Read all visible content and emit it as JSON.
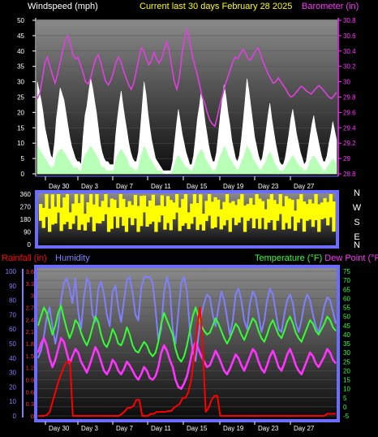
{
  "header": {
    "left": "Windspeed (mph)",
    "center": "Current last 30 days February 28 2025",
    "right": "Barometer (in)"
  },
  "colors": {
    "background": "#000000",
    "panel_top": "#8a8a8a",
    "panel_bottom": "#0a0a0a",
    "frame": "#6c6cff",
    "header_left": "#ffffff",
    "header_center": "#ffff00",
    "barometer": "#e040e0",
    "wind_gust": "#ffffff",
    "wind_avg": "#b8ffb8",
    "wind_dir": "#ffff00",
    "rain": "#ff0000",
    "humidity": "#8080ff",
    "temperature": "#33ff33",
    "dewpoint": "#ff33ff"
  },
  "date_labels": [
    "Day 30",
    "Day 3",
    "Day 7",
    "Day 11",
    "Day 15",
    "Day 19",
    "Day 23",
    "Day 27"
  ],
  "chart_data": [
    {
      "type": "line",
      "name": "wind-barometer",
      "y_axis_left": {
        "label": "Windspeed (mph)",
        "ticks": [
          "0",
          "5",
          "10",
          "15",
          "20",
          "25",
          "30",
          "35",
          "40",
          "45",
          "50"
        ],
        "range": [
          0,
          50
        ]
      },
      "y_axis_right": {
        "label": "Barometer (in)",
        "ticks": [
          "28.8",
          "29",
          "29.2",
          "29.4",
          "29.6",
          "29.8",
          "30",
          "30.2",
          "30.4",
          "30.6",
          "30.8"
        ],
        "range": [
          28.8,
          30.8
        ]
      },
      "x_ticks": [
        "Day 30",
        "Day 3",
        "Day 7",
        "Day 11",
        "Day 15",
        "Day 19",
        "Day 23",
        "Day 27"
      ],
      "series": [
        {
          "name": "Windspeed (mph)",
          "role": "gust",
          "values": [
            30,
            27,
            24,
            20,
            15,
            12,
            9,
            6,
            5,
            10,
            18,
            23,
            28,
            26,
            24,
            20,
            16,
            12,
            9,
            7,
            5,
            4,
            4,
            3,
            12,
            19,
            22,
            27,
            31,
            28,
            24,
            20,
            15,
            10,
            7,
            5,
            4,
            4,
            3,
            3,
            3,
            12,
            18,
            23,
            27,
            22,
            18,
            14,
            10,
            7,
            5,
            4,
            4,
            7,
            14,
            22,
            30,
            26,
            20,
            15,
            11,
            8,
            5,
            4,
            3,
            2,
            1,
            1,
            1,
            1,
            1,
            4,
            10,
            16,
            21,
            17,
            13,
            10,
            7,
            5,
            3,
            3,
            6,
            12,
            18,
            22,
            27,
            22,
            17,
            13,
            9,
            6,
            4,
            4,
            7,
            13,
            19,
            24,
            29,
            25,
            20,
            16,
            11,
            8,
            5,
            4,
            6,
            11,
            17,
            24,
            31,
            27,
            22,
            17,
            12,
            9,
            6,
            4,
            5,
            9,
            14,
            19,
            23,
            18,
            14,
            10,
            7,
            4,
            3,
            3,
            5,
            9,
            13,
            18,
            21,
            17,
            13,
            10,
            7,
            5,
            3,
            4,
            8,
            12,
            16,
            19,
            15,
            12,
            9,
            6,
            4,
            4,
            6,
            10,
            13,
            17,
            14,
            11
          ]
        },
        {
          "name": "Wind average",
          "role": "average",
          "values": [
            9,
            8,
            7,
            6,
            5,
            4,
            3,
            2,
            2,
            3,
            6,
            7,
            8,
            8,
            7,
            6,
            5,
            4,
            3,
            2,
            2,
            2,
            1,
            1,
            4,
            6,
            7,
            8,
            9,
            8,
            7,
            6,
            5,
            3,
            2,
            2,
            1,
            1,
            1,
            1,
            1,
            4,
            6,
            7,
            8,
            7,
            6,
            5,
            3,
            2,
            2,
            1,
            1,
            2,
            5,
            7,
            9,
            8,
            6,
            5,
            4,
            3,
            2,
            1,
            1,
            1,
            0,
            0,
            0,
            0,
            0,
            1,
            3,
            5,
            6,
            5,
            4,
            3,
            2,
            2,
            1,
            1,
            2,
            4,
            6,
            7,
            8,
            7,
            5,
            4,
            3,
            2,
            1,
            1,
            2,
            4,
            6,
            7,
            9,
            8,
            6,
            5,
            4,
            3,
            2,
            1,
            2,
            4,
            5,
            7,
            9,
            8,
            7,
            5,
            4,
            3,
            2,
            1,
            2,
            3,
            4,
            6,
            7,
            6,
            4,
            3,
            2,
            1,
            1,
            1,
            2,
            3,
            4,
            5,
            6,
            5,
            4,
            3,
            2,
            2,
            1,
            1,
            2,
            4,
            5,
            6,
            5,
            4,
            3,
            2,
            1,
            1,
            2,
            3,
            4,
            5,
            4,
            3
          ]
        },
        {
          "name": "Barometer (in)",
          "role": "barometer",
          "values": [
            29.78,
            29.85,
            30.05,
            30.25,
            30.32,
            30.2,
            30.08,
            29.98,
            30.1,
            30.25,
            30.4,
            30.55,
            30.6,
            30.5,
            30.35,
            30.3,
            30.32,
            30.22,
            30.12,
            30.0,
            29.97,
            30.05,
            30.18,
            30.3,
            30.35,
            30.25,
            30.12,
            30.0,
            29.96,
            30.02,
            30.12,
            30.25,
            30.32,
            30.26,
            30.14,
            30.05,
            29.96,
            29.9,
            29.98,
            30.14,
            30.3,
            30.44,
            30.4,
            30.3,
            30.22,
            30.28,
            30.38,
            30.3,
            30.24,
            30.3,
            30.42,
            30.52,
            30.4,
            30.2,
            30.0,
            29.9,
            30.05,
            30.35,
            30.56,
            30.68,
            30.55,
            30.35,
            30.22,
            30.1,
            29.96,
            29.8,
            29.72,
            29.6,
            29.5,
            29.45,
            29.42,
            29.55,
            29.7,
            29.82,
            29.95,
            30.05,
            30.15,
            30.25,
            30.32,
            30.3,
            30.36,
            30.42,
            30.38,
            30.3,
            30.28,
            30.34,
            30.4,
            30.44,
            30.36,
            30.26,
            30.18,
            30.1,
            30.04,
            29.98,
            30.0,
            30.05,
            30.0,
            29.95,
            29.9,
            29.84,
            29.8,
            29.82,
            29.86,
            29.9,
            29.94,
            29.92,
            29.88,
            29.86,
            29.84,
            29.88,
            29.92,
            29.95,
            29.92,
            29.88,
            29.84,
            29.8,
            29.78,
            29.82,
            29.86
          ]
        }
      ]
    },
    {
      "type": "scatter",
      "name": "wind-direction",
      "y_axis_left": {
        "ticks": [
          "0",
          "90",
          "180",
          "270",
          "360"
        ],
        "range": [
          0,
          360
        ]
      },
      "y_axis_right": {
        "ticks": [
          "N",
          "W",
          "S",
          "E",
          "N"
        ]
      },
      "series": [
        {
          "name": "Wind direction",
          "values": [
            250,
            210,
            300,
            180,
            270,
            230,
            320,
            200,
            260,
            290,
            190,
            240,
            310,
            220,
            270,
            180,
            250,
            300,
            210,
            280,
            230,
            260,
            320,
            190,
            240,
            280,
            210,
            300,
            250,
            180,
            270,
            230,
            290,
            200,
            260,
            310,
            220,
            250,
            280,
            190,
            240,
            300,
            210,
            270,
            230,
            260,
            320,
            200,
            250,
            280,
            190,
            240,
            300,
            220,
            270,
            180,
            260,
            310,
            230,
            250,
            280,
            200,
            240,
            290,
            210,
            270,
            230,
            260,
            310,
            190,
            250,
            280,
            220,
            300,
            240,
            270,
            200,
            260,
            290,
            230,
            250,
            310,
            210,
            270,
            240,
            280,
            190,
            260,
            300,
            220,
            250,
            270,
            230,
            290,
            200,
            260,
            280,
            240,
            310,
            220
          ]
        }
      ]
    },
    {
      "type": "line",
      "name": "rain-humidity-temperature",
      "y_axis_rain": {
        "label": "Rainfall (in)",
        "ticks": [
          "0",
          "0.3",
          "0.6",
          "0.9",
          "1.2",
          "1.5",
          "1.8",
          "2.1",
          "2.4",
          "2.7",
          "3",
          "3.3",
          "3.6"
        ],
        "range": [
          0,
          3.6
        ]
      },
      "y_axis_humidity": {
        "label": "Humidity",
        "ticks": [
          "0",
          "10",
          "20",
          "30",
          "40",
          "50",
          "60",
          "70",
          "80",
          "90",
          "100"
        ],
        "range": [
          0,
          100
        ]
      },
      "y_axis_right": {
        "label": "Temperature (°F) Dew Point (°F)",
        "ticks": [
          "-5",
          "0",
          "5",
          "10",
          "15",
          "20",
          "25",
          "30",
          "35",
          "40",
          "45",
          "50",
          "55",
          "60",
          "65",
          "70",
          "75"
        ],
        "range": [
          -5,
          75
        ]
      },
      "x_ticks": [
        "Day 30",
        "Day 3",
        "Day 7",
        "Day 11",
        "Day 15",
        "Day 19",
        "Day 23",
        "Day 27"
      ],
      "series": [
        {
          "name": "Rainfall (in)",
          "values": [
            0,
            0,
            0,
            0.02,
            0.1,
            0.35,
            0.6,
            0.85,
            1.05,
            1.25,
            1.35,
            1.35,
            0,
            0,
            0,
            0,
            0,
            0,
            0,
            0,
            0,
            0,
            0,
            0,
            0,
            0,
            0,
            0,
            0,
            0.05,
            0.12,
            0.2,
            0.2,
            0.25,
            0.4,
            0.4,
            0,
            0,
            0,
            0.05,
            0.05,
            0.1,
            0.1,
            0.1,
            0.1,
            0.12,
            0.12,
            0.2,
            0.25,
            0.3,
            0.45,
            0.45,
            0.6,
            0.9,
            1.5,
            2.2,
            2.7,
            1.6,
            0.1,
            0.2,
            0.4,
            0.5,
            0.5,
            0,
            0,
            0,
            0,
            0,
            0,
            0,
            0,
            0,
            0,
            0,
            0,
            0,
            0,
            0,
            0,
            0,
            0,
            0,
            0,
            0,
            0,
            0,
            0,
            0,
            0,
            0,
            0,
            0,
            0,
            0,
            0,
            0,
            0,
            0,
            0,
            0,
            0.05,
            0.05,
            0.05,
            0.05
          ]
        },
        {
          "name": "Humidity",
          "values": [
            40,
            45,
            55,
            68,
            75,
            62,
            50,
            60,
            80,
            92,
            95,
            88,
            78,
            95,
            72,
            60,
            82,
            95,
            92,
            70,
            65,
            88,
            93,
            84,
            70,
            62,
            86,
            90,
            75,
            65,
            80,
            94,
            96,
            85,
            70,
            66,
            88,
            96,
            96,
            96,
            92,
            74,
            52,
            60,
            86,
            96,
            88,
            60,
            50,
            72,
            92,
            96,
            86,
            60,
            45,
            38,
            55,
            70,
            78,
            84,
            82,
            70,
            62,
            75,
            86,
            80,
            68,
            56,
            66,
            84,
            88,
            80,
            66,
            60,
            78,
            86,
            82,
            70,
            58,
            66,
            80,
            88,
            84,
            72,
            60,
            58,
            70,
            80,
            84,
            78,
            64,
            58,
            66,
            78,
            84,
            80,
            70,
            62,
            58,
            66,
            76,
            82,
            80,
            72,
            64
          ]
        },
        {
          "name": "Temperature (°F)",
          "values": [
            45,
            50,
            55,
            52,
            46,
            40,
            45,
            52,
            56,
            49,
            43,
            38,
            42,
            48,
            46,
            41,
            37,
            34,
            38,
            44,
            50,
            47,
            40,
            35,
            33,
            37,
            43,
            40,
            35,
            34,
            38,
            44,
            40,
            34,
            31,
            30,
            33,
            36,
            34,
            30,
            28,
            30,
            36,
            46,
            52,
            48,
            44,
            40,
            32,
            27,
            25,
            28,
            34,
            42,
            50,
            55,
            50,
            45,
            42,
            40,
            41,
            45,
            49,
            46,
            42,
            38,
            35,
            38,
            42,
            46,
            44,
            40,
            37,
            41,
            45,
            49,
            47,
            42,
            38,
            36,
            40,
            45,
            48,
            44,
            40,
            38,
            42,
            47,
            50,
            46,
            41,
            38,
            36,
            40,
            44,
            48,
            46,
            42,
            40,
            43,
            46,
            50,
            48,
            44,
            42
          ]
        },
        {
          "name": "Dew Point (°F)",
          "values": [
            30,
            35,
            38,
            34,
            27,
            22,
            26,
            32,
            38,
            36,
            30,
            24,
            28,
            32,
            30,
            25,
            22,
            19,
            23,
            28,
            33,
            30,
            25,
            20,
            18,
            21,
            26,
            24,
            20,
            18,
            21,
            25,
            23,
            20,
            17,
            15,
            18,
            22,
            20,
            16,
            15,
            17,
            22,
            30,
            34,
            31,
            26,
            22,
            15,
            11,
            10,
            13,
            17,
            24,
            32,
            36,
            32,
            28,
            25,
            22,
            23,
            27,
            31,
            28,
            24,
            20,
            18,
            21,
            25,
            29,
            27,
            23,
            20,
            24,
            28,
            32,
            30,
            25,
            21,
            19,
            23,
            28,
            31,
            27,
            22,
            20,
            24,
            29,
            32,
            28,
            23,
            20,
            18,
            22,
            26,
            30,
            28,
            24,
            22,
            25,
            28,
            32,
            30,
            26,
            24
          ]
        }
      ]
    }
  ]
}
